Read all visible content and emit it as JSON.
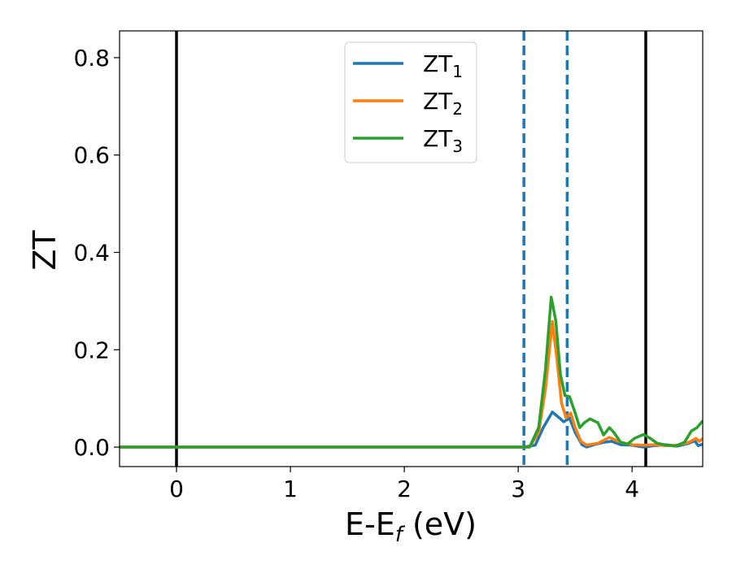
{
  "chart_data": {
    "type": "line",
    "title": "",
    "xlabel": "E-E",
    "xlabel_sub": "f",
    "xlabel_unit": " (eV)",
    "ylabel": "ZT",
    "xlim": [
      -0.5,
      4.62
    ],
    "ylim": [
      -0.04,
      0.855
    ],
    "grid": false,
    "legend_position": "top-center",
    "xticks": [
      0,
      1,
      2,
      3,
      4
    ],
    "yticks": [
      0.0,
      0.2,
      0.4,
      0.6,
      0.8
    ],
    "xtick_labels": [
      "0",
      "1",
      "2",
      "3",
      "4"
    ],
    "ytick_labels": [
      "0.0",
      "0.2",
      "0.4",
      "0.6",
      "0.8"
    ],
    "vlines": [
      {
        "x": 0.0,
        "style": "solid",
        "color": "#000000"
      },
      {
        "x": 4.12,
        "style": "solid",
        "color": "#000000"
      },
      {
        "x": 3.05,
        "style": "dashed",
        "color": "#1f77b4"
      },
      {
        "x": 3.43,
        "style": "dashed",
        "color": "#1f77b4"
      }
    ],
    "series": [
      {
        "name": "ZT",
        "name_sub": "1",
        "color": "#1f77b4",
        "points": [
          [
            -0.5,
            0
          ],
          [
            3.05,
            0
          ],
          [
            3.15,
            0.004
          ],
          [
            3.22,
            0.04
          ],
          [
            3.3,
            0.072
          ],
          [
            3.36,
            0.06
          ],
          [
            3.4,
            0.052
          ],
          [
            3.45,
            0.06
          ],
          [
            3.5,
            0.03
          ],
          [
            3.56,
            0.005
          ],
          [
            3.6,
            0.0
          ],
          [
            3.68,
            0.006
          ],
          [
            3.75,
            0.01
          ],
          [
            3.82,
            0.012
          ],
          [
            3.9,
            0.005
          ],
          [
            4.0,
            0.004
          ],
          [
            4.1,
            0.0
          ],
          [
            4.2,
            0.003
          ],
          [
            4.3,
            0.005
          ],
          [
            4.4,
            0.002
          ],
          [
            4.5,
            0.008
          ],
          [
            4.55,
            0.013
          ],
          [
            4.58,
            0.003
          ],
          [
            4.62,
            0.006
          ]
        ]
      },
      {
        "name": "ZT",
        "name_sub": "2",
        "color": "#ff7f0e",
        "points": [
          [
            -0.5,
            0
          ],
          [
            3.1,
            0
          ],
          [
            3.18,
            0.03
          ],
          [
            3.24,
            0.12
          ],
          [
            3.3,
            0.258
          ],
          [
            3.34,
            0.18
          ],
          [
            3.38,
            0.09
          ],
          [
            3.42,
            0.06
          ],
          [
            3.46,
            0.07
          ],
          [
            3.5,
            0.04
          ],
          [
            3.55,
            0.012
          ],
          [
            3.6,
            0.004
          ],
          [
            3.7,
            0.008
          ],
          [
            3.8,
            0.02
          ],
          [
            3.9,
            0.01
          ],
          [
            4.0,
            0.005
          ],
          [
            4.1,
            0.004
          ],
          [
            4.2,
            0.005
          ],
          [
            4.3,
            0.003
          ],
          [
            4.4,
            0.004
          ],
          [
            4.5,
            0.01
          ],
          [
            4.56,
            0.018
          ],
          [
            4.59,
            0.012
          ],
          [
            4.62,
            0.018
          ]
        ]
      },
      {
        "name": "ZT",
        "name_sub": "3",
        "color": "#2ca02c",
        "points": [
          [
            -0.5,
            0
          ],
          [
            3.1,
            0
          ],
          [
            3.18,
            0.04
          ],
          [
            3.24,
            0.16
          ],
          [
            3.29,
            0.308
          ],
          [
            3.33,
            0.26
          ],
          [
            3.37,
            0.15
          ],
          [
            3.41,
            0.106
          ],
          [
            3.45,
            0.104
          ],
          [
            3.5,
            0.07
          ],
          [
            3.54,
            0.04
          ],
          [
            3.58,
            0.05
          ],
          [
            3.63,
            0.058
          ],
          [
            3.7,
            0.05
          ],
          [
            3.75,
            0.025
          ],
          [
            3.8,
            0.04
          ],
          [
            3.84,
            0.03
          ],
          [
            3.9,
            0.01
          ],
          [
            3.96,
            0.006
          ],
          [
            4.02,
            0.018
          ],
          [
            4.1,
            0.026
          ],
          [
            4.16,
            0.018
          ],
          [
            4.22,
            0.008
          ],
          [
            4.3,
            0.004
          ],
          [
            4.38,
            0.002
          ],
          [
            4.46,
            0.01
          ],
          [
            4.52,
            0.033
          ],
          [
            4.57,
            0.04
          ],
          [
            4.62,
            0.054
          ]
        ]
      }
    ]
  }
}
